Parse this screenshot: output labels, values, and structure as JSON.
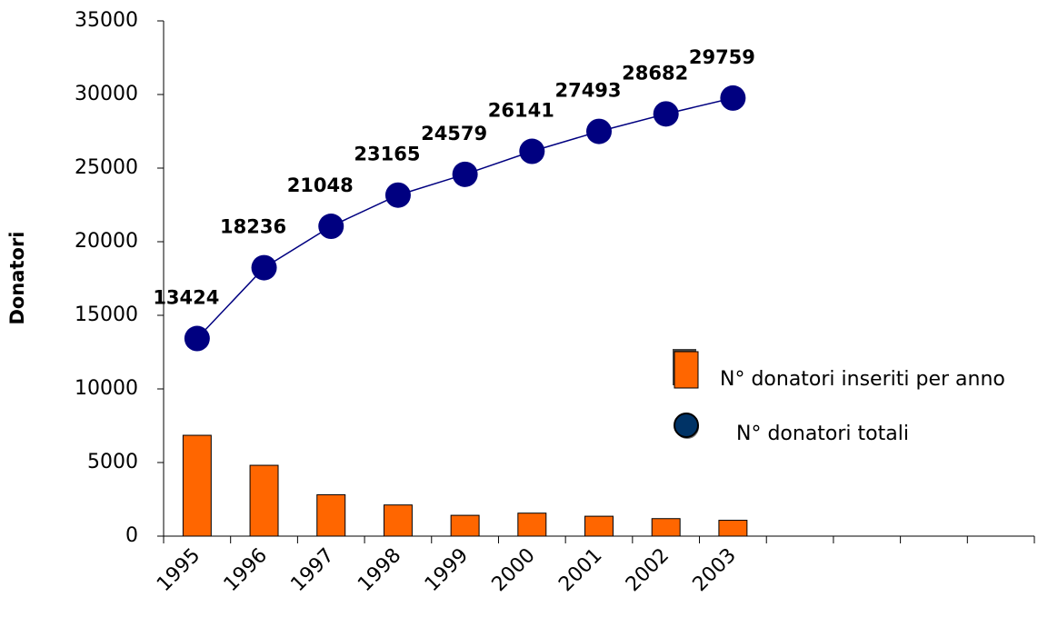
{
  "chart_data": {
    "type": "bar_line",
    "y_label": "Donatori",
    "categories": [
      "1995",
      "1996",
      "1997",
      "1998",
      "1999",
      "2000",
      "2001",
      "2002",
      "2003",
      null,
      null,
      null,
      null
    ],
    "series": [
      {
        "name": "N° donatori inseriti per anno",
        "type": "bar",
        "color": "#ff6600",
        "values": [
          6850,
          4812,
          2812,
          2117,
          1414,
          1562,
          1352,
          1189,
          1077,
          null,
          null,
          null,
          null
        ]
      },
      {
        "name": "N° donatori totali",
        "type": "line",
        "color": "#000080",
        "values": [
          13424,
          18236,
          21048,
          23165,
          24579,
          26141,
          27493,
          28682,
          29759,
          null,
          null,
          null,
          null
        ]
      }
    ],
    "ylim": [
      0,
      35000
    ],
    "yticks": [
      0,
      5000,
      10000,
      15000,
      20000,
      25000,
      30000,
      35000
    ]
  }
}
